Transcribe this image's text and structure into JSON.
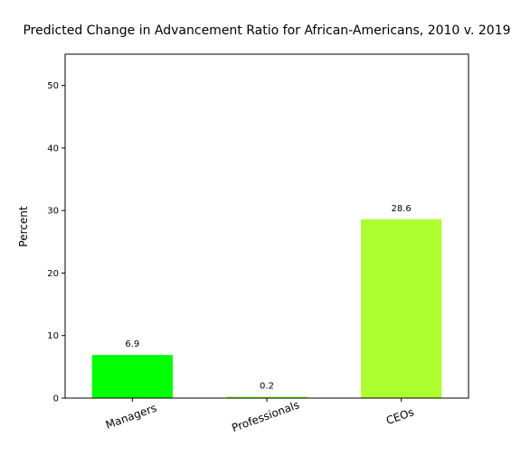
{
  "chart_data": {
    "type": "bar",
    "title": "Predicted Change in Advancement Ratio for African-Americans, 2010 v. 2019",
    "xlabel": "",
    "ylabel": "Percent",
    "categories": [
      "Managers",
      "Professionals",
      "CEOs"
    ],
    "values": [
      6.9,
      0.2,
      28.6
    ],
    "value_labels": [
      "6.9",
      "0.2",
      "28.6"
    ],
    "colors": [
      "#00ff00",
      "#7fff00",
      "#adff2f"
    ],
    "ylim": [
      0,
      55
    ],
    "yticks": [
      0,
      10,
      20,
      30,
      40,
      50
    ],
    "ytick_labels": [
      "0",
      "10",
      "20",
      "30",
      "40",
      "50"
    ],
    "xtick_rotation_deg": -20,
    "grid": false,
    "legend": "none"
  }
}
